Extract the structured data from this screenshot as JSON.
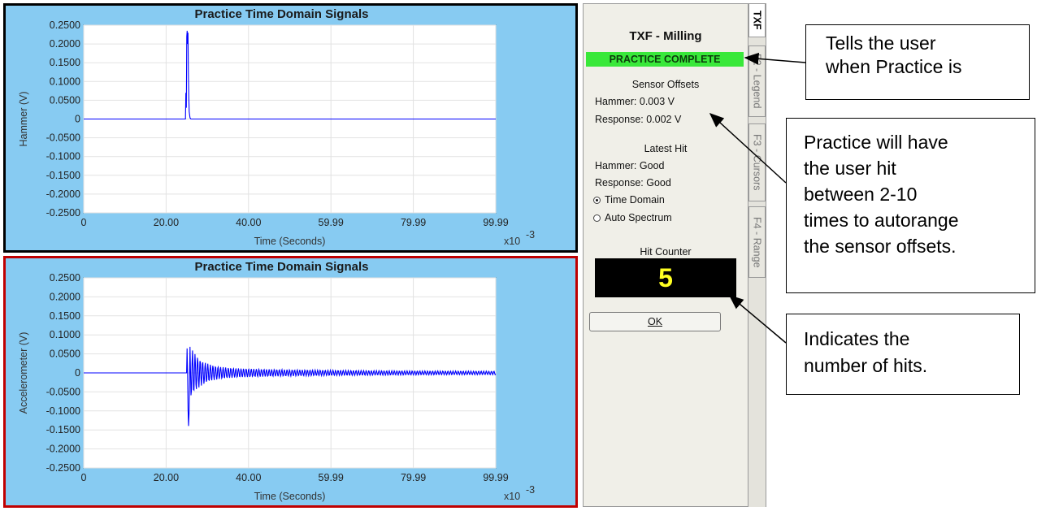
{
  "plots": [
    {
      "title": "Practice Time Domain Signals",
      "ylabel": "Hammer (V)",
      "xlabel": "Time (Seconds)",
      "x_multiplier": "x10",
      "x_exponent": "-3",
      "y_ticks": [
        "0.2500",
        "0.2000",
        "0.1500",
        "0.1000",
        "0.0500",
        "0",
        "-0.0500",
        "-0.1000",
        "-0.1500",
        "-0.2000",
        "-0.2500"
      ],
      "x_ticks": [
        "0",
        "20.00",
        "40.00",
        "59.99",
        "79.99",
        "99.99"
      ],
      "border_color": "#000000"
    },
    {
      "title": "Practice Time Domain Signals",
      "ylabel": "Accelerometer (V)",
      "xlabel": "Time (Seconds)",
      "x_multiplier": "x10",
      "x_exponent": "-3",
      "y_ticks": [
        "0.2500",
        "0.2000",
        "0.1500",
        "0.1000",
        "0.0500",
        "0",
        "-0.0500",
        "-0.1000",
        "-0.1500",
        "-0.2000",
        "-0.2500"
      ],
      "x_ticks": [
        "0",
        "20.00",
        "40.00",
        "59.99",
        "79.99",
        "99.99"
      ],
      "border_color": "#c00000"
    }
  ],
  "chart_data": [
    {
      "type": "line",
      "ylim": [
        -0.25,
        0.25
      ],
      "xlim": [
        0,
        99.99
      ],
      "grid": true,
      "series": [
        {
          "color": "#0000ff",
          "x": [
            0,
            24.7,
            24.8,
            24.9,
            25.0,
            25.1,
            25.2,
            25.3,
            25.4,
            25.5,
            25.6,
            25.8,
            26.0,
            99.99
          ],
          "y": [
            0,
            0,
            0.07,
            0.03,
            0.22,
            0.235,
            0.2,
            0.23,
            0.12,
            0.06,
            0.02,
            0.003,
            0,
            0
          ]
        }
      ]
    },
    {
      "type": "line",
      "ylim": [
        -0.25,
        0.25
      ],
      "xlim": [
        0,
        99.99
      ],
      "grid": true,
      "series": [
        {
          "color": "#0000ff",
          "description_of_shape": "impulse response: baseline 0, strong oscillation near 25 ms decaying toward small ripple",
          "onset": 25.0,
          "peak_positive": 0.07,
          "peak_negative": -0.14
        }
      ]
    }
  ],
  "side_panel": {
    "title": "TXF - Milling",
    "status": "PRACTICE COMPLETE",
    "status_color": "#39e83a",
    "offsets_heading": "Sensor Offsets",
    "hammer_offset": "Hammer: 0.003 V",
    "response_offset": "Response: 0.002 V",
    "latest_heading": "Latest Hit",
    "hammer_hit": "Hammer: Good",
    "response_hit": "Response: Good",
    "radio_time": "Time Domain",
    "radio_auto": "Auto Spectrum",
    "radio_selected": "Time Domain",
    "counter_heading": "Hit Counter",
    "counter_value": "5",
    "ok_label": "OK"
  },
  "tabs": [
    "TXF",
    "F2 - Legend",
    "F3 - Cursors",
    "F4 - Range"
  ],
  "callouts": {
    "practice_line1": "Tells the user",
    "practice_line2": "when Practice is",
    "offsets_lines": [
      "Practice will have",
      "the user hit",
      "between 2-10",
      "times to autorange",
      "the sensor offsets."
    ],
    "hits_lines": [
      "Indicates the",
      "number of hits."
    ]
  }
}
